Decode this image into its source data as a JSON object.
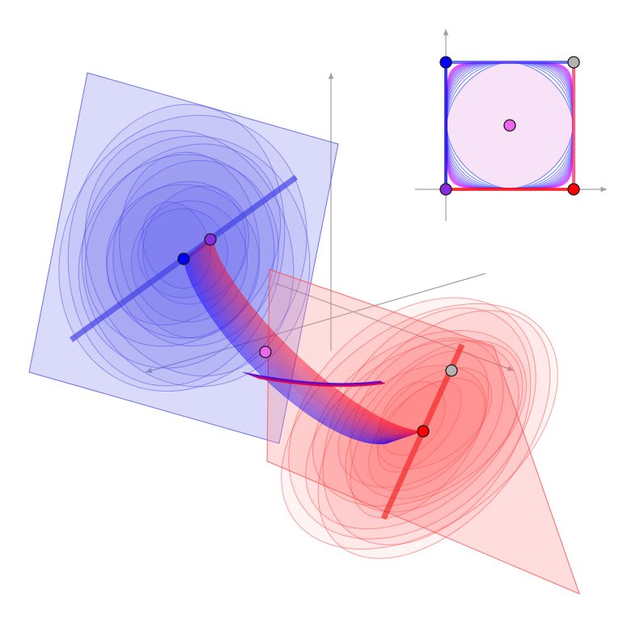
{
  "scene": {
    "colors": {
      "background": "#ffffff",
      "axis": "#a0a0a0",
      "blue": "#0000ff",
      "red": "#ff0000",
      "blue_plane_fill": "#7a7aee",
      "red_plane_fill": "#ff8f8f",
      "blue_line": "#3c3ce6",
      "red_line": "#f22a2a",
      "point_outline": "#1a1a1a"
    },
    "points": [
      {
        "id": "blue",
        "color": "#0000ff"
      },
      {
        "id": "purple",
        "color": "#8a2be2"
      },
      {
        "id": "pink",
        "color": "#ee66ee"
      },
      {
        "id": "red",
        "color": "#ff0000"
      },
      {
        "id": "gray",
        "color": "#b3b3b3"
      }
    ]
  },
  "inset": {
    "points": [
      {
        "id": "top-left",
        "color": "#0000ff"
      },
      {
        "id": "top-right",
        "color": "#b3b3b3"
      },
      {
        "id": "bottom-left",
        "color": "#8a2be2"
      },
      {
        "id": "bottom-right",
        "color": "#ff0000"
      },
      {
        "id": "center",
        "color": "#ee66ee"
      }
    ]
  }
}
